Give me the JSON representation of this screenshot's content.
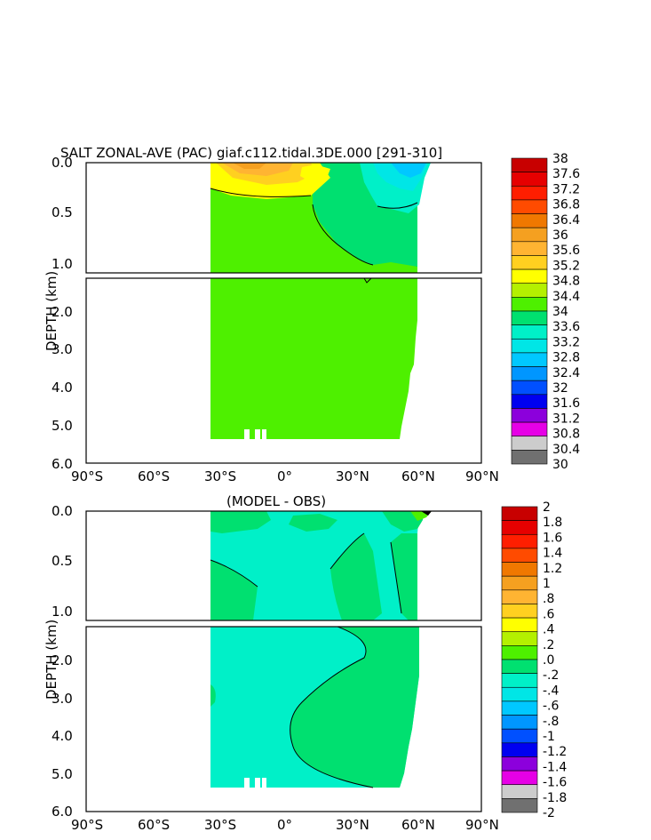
{
  "top_panel": {
    "title": "SALT ZONAL-AVE (PAC) giaf.c112.tidal.3DE.000 [291-310]",
    "ylabel": "DEPTH (km)",
    "yticks": [
      "0.0",
      "0.5",
      "1.0",
      "2.0",
      "3.0",
      "4.0",
      "5.0",
      "6.0"
    ],
    "xticks": [
      "90°S",
      "60°S",
      "30°S",
      "0°",
      "30°N",
      "60°N",
      "90°N"
    ],
    "colorbar_labels": [
      "38",
      "37.6",
      "37.2",
      "36.8",
      "36.4",
      "36",
      "35.6",
      "35.2",
      "34.8",
      "34.4",
      "34",
      "33.6",
      "33.2",
      "32.8",
      "32.4",
      "32",
      "31.6",
      "31.2",
      "30.8",
      "30.4",
      "30"
    ]
  },
  "bottom_panel": {
    "title": "(MODEL - OBS)",
    "ylabel": "DEPTH (km)",
    "yticks": [
      "0.0",
      "0.5",
      "1.0",
      "2.0",
      "3.0",
      "4.0",
      "5.0",
      "6.0"
    ],
    "xticks": [
      "90°S",
      "60°S",
      "30°S",
      "0°",
      "30°N",
      "60°N",
      "90°N"
    ],
    "colorbar_labels": [
      "2",
      "1.8",
      "1.6",
      "1.4",
      "1.2",
      "1",
      ".8",
      ".6",
      ".4",
      ".2",
      ".0",
      "-.2",
      "-.4",
      "-.6",
      "-.8",
      "-1",
      "-1.2",
      "-1.4",
      "-1.6",
      "-1.8",
      "-2"
    ]
  },
  "colorbar_colors": [
    "#c80000",
    "#e60000",
    "#ff1e00",
    "#ff4b00",
    "#f07800",
    "#f5a020",
    "#ffb432",
    "#ffd020",
    "#ffff00",
    "#b4f000",
    "#4ef000",
    "#00e070",
    "#00f0c8",
    "#00e6e6",
    "#00c8ff",
    "#0096ff",
    "#0050ff",
    "#0000f0",
    "#8c00dc",
    "#e600e6",
    "#cccccc",
    "#707070"
  ],
  "chart_data": [
    {
      "type": "heatmap",
      "title": "SALT ZONAL-AVE (PAC) giaf.c112.tidal.3DE.000 [291-310]",
      "xlabel": "",
      "ylabel": "DEPTH (km)",
      "xlim": [
        -90,
        90
      ],
      "ylim": [
        6.0,
        0.0
      ],
      "levels": [
        30,
        30.4,
        30.8,
        31.2,
        31.6,
        32,
        32.4,
        32.8,
        33.2,
        33.6,
        34,
        34.4,
        34.8,
        35.2,
        35.6,
        36,
        36.4,
        36.8,
        37.2,
        37.6,
        38
      ],
      "dominant_value_range": [
        34.4,
        34.8
      ],
      "notes_visible": "Pacific zonal mean salinity; higher salinity near surface in southern subtropics, low salinity near surface in north"
    },
    {
      "type": "heatmap",
      "title": "(MODEL - OBS)",
      "xlabel": "",
      "ylabel": "DEPTH (km)",
      "xlim": [
        -90,
        90
      ],
      "ylim": [
        6.0,
        0.0
      ],
      "levels": [
        -2,
        -1.8,
        -1.6,
        -1.4,
        -1.2,
        -1,
        -0.8,
        -0.6,
        -0.4,
        -0.2,
        0,
        0.2,
        0.4,
        0.6,
        0.8,
        1,
        1.2,
        1.4,
        1.6,
        1.8,
        2
      ],
      "dominant_value_range": [
        -0.2,
        0.2
      ]
    }
  ]
}
